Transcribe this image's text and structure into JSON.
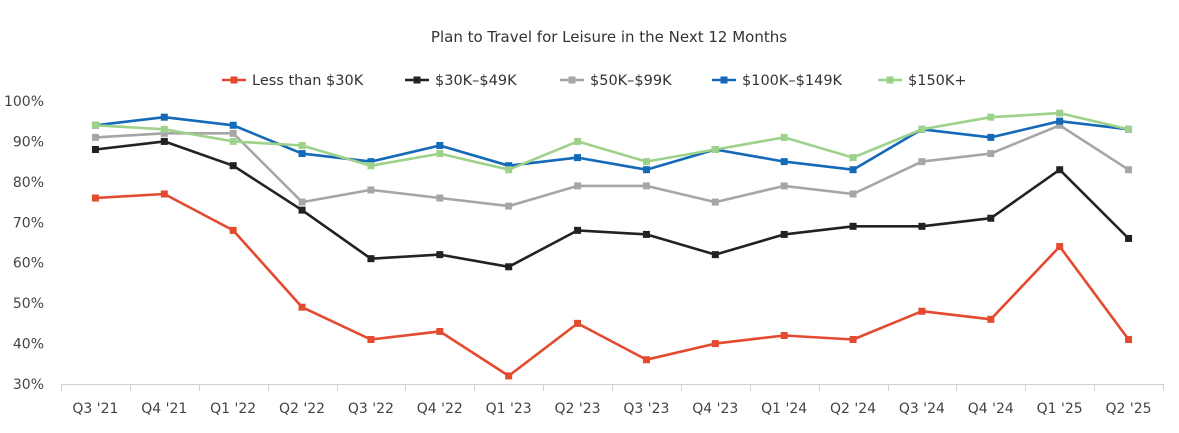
{
  "chart_data": {
    "type": "line",
    "title": "Plan to Travel for Leisure in the Next 12 Months",
    "categories": [
      "Q3 '21",
      "Q4 '21",
      "Q1 '22",
      "Q2 '22",
      "Q3 '22",
      "Q4 '22",
      "Q1 '23",
      "Q2 '23",
      "Q3 '23",
      "Q4 '23",
      "Q1 '24",
      "Q2 '24",
      "Q3 '24",
      "Q4 '24",
      "Q1 '25",
      "Q2 '25"
    ],
    "yticks": [
      "30%",
      "40%",
      "50%",
      "60%",
      "70%",
      "80%",
      "90%",
      "100%"
    ],
    "ylim": [
      30,
      100
    ],
    "legend_position": "top",
    "series": [
      {
        "name": "Less than $30K",
        "color": "#E34A2F",
        "values": [
          76,
          77,
          68,
          49,
          41,
          43,
          32,
          45,
          36,
          40,
          42,
          41,
          48,
          46,
          64,
          41
        ]
      },
      {
        "name": "$30K–$49K",
        "color": "#222222",
        "values": [
          88,
          90,
          84,
          73,
          61,
          62,
          59,
          68,
          67,
          62,
          67,
          69,
          69,
          71,
          83,
          66
        ]
      },
      {
        "name": "$50K–$99K",
        "color": "#A6A6A6",
        "values": [
          91,
          92,
          92,
          75,
          78,
          76,
          74,
          79,
          79,
          75,
          79,
          77,
          85,
          87,
          94,
          83
        ]
      },
      {
        "name": "$100K–$149K",
        "color": "#1469B8",
        "values": [
          94,
          96,
          94,
          87,
          85,
          89,
          84,
          86,
          83,
          88,
          85,
          83,
          93,
          91,
          95,
          93
        ]
      },
      {
        "name": "$150K+",
        "color": "#9ED18A",
        "values": [
          94,
          93,
          90,
          89,
          84,
          87,
          83,
          90,
          85,
          88,
          91,
          86,
          93,
          96,
          97,
          93
        ]
      }
    ]
  }
}
